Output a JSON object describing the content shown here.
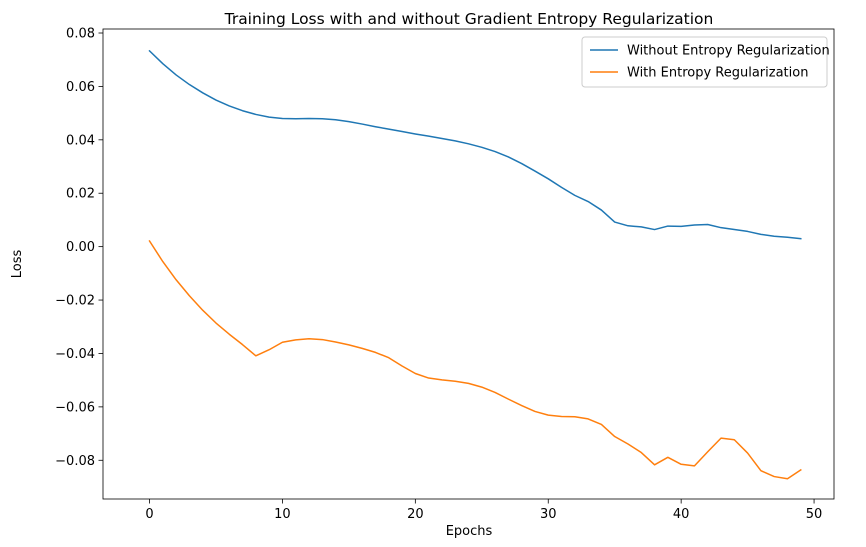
{
  "chart_data": {
    "type": "line",
    "title": "Training Loss with and without Gradient Entropy Regularization",
    "xlabel": "Epochs",
    "ylabel": "Loss",
    "xlim": [
      -3.5,
      51.5
    ],
    "ylim": [
      -0.0945,
      0.0815
    ],
    "xticks": [
      0,
      10,
      20,
      30,
      40,
      50
    ],
    "xtick_labels": [
      "0",
      "10",
      "20",
      "30",
      "40",
      "50"
    ],
    "yticks": [
      -0.08,
      -0.06,
      -0.04,
      -0.02,
      0.0,
      0.02,
      0.04,
      0.06,
      0.08
    ],
    "ytick_labels": [
      "−0.08",
      "−0.06",
      "−0.04",
      "−0.02",
      "0.00",
      "0.02",
      "0.04",
      "0.06",
      "0.08"
    ],
    "grid": false,
    "legend_position": "top-right",
    "x": [
      0,
      1,
      2,
      3,
      4,
      5,
      6,
      7,
      8,
      9,
      10,
      11,
      12,
      13,
      14,
      15,
      16,
      17,
      18,
      19,
      20,
      21,
      22,
      23,
      24,
      25,
      26,
      27,
      28,
      29,
      30,
      31,
      32,
      33,
      34,
      35,
      36,
      37,
      38,
      39,
      40,
      41,
      42,
      43,
      44,
      45,
      46,
      47,
      48,
      49
    ],
    "series": [
      {
        "name": "Without Entropy Regularization",
        "color": "#1f77b4",
        "values": [
          0.0733,
          0.0685,
          0.0643,
          0.0607,
          0.0576,
          0.0549,
          0.0527,
          0.0509,
          0.0495,
          0.0485,
          0.048,
          0.0479,
          0.048,
          0.0479,
          0.0475,
          0.0468,
          0.0459,
          0.0449,
          0.044,
          0.0431,
          0.0422,
          0.0414,
          0.0405,
          0.0396,
          0.0385,
          0.0372,
          0.0356,
          0.0336,
          0.0311,
          0.0283,
          0.0254,
          0.0222,
          0.0192,
          0.0169,
          0.0137,
          0.0092,
          0.0078,
          0.0074,
          0.0064,
          0.0077,
          0.0076,
          0.0081,
          0.0083,
          0.0071,
          0.0064,
          0.0057,
          0.0046,
          0.0039,
          0.0035,
          0.003
        ]
      },
      {
        "name": "With Entropy Regularization",
        "color": "#ff7f0e",
        "values": [
          0.0021,
          -0.0056,
          -0.0124,
          -0.0184,
          -0.0238,
          -0.0286,
          -0.0328,
          -0.0367,
          -0.0409,
          -0.0386,
          -0.0358,
          -0.0349,
          -0.0345,
          -0.0348,
          -0.0357,
          -0.0368,
          -0.0381,
          -0.0396,
          -0.0416,
          -0.0447,
          -0.0475,
          -0.0492,
          -0.0499,
          -0.0504,
          -0.0512,
          -0.0526,
          -0.0546,
          -0.0571,
          -0.0595,
          -0.0617,
          -0.0631,
          -0.0636,
          -0.0637,
          -0.0645,
          -0.0666,
          -0.0711,
          -0.0739,
          -0.0771,
          -0.0817,
          -0.0789,
          -0.0815,
          -0.0821,
          -0.0768,
          -0.0717,
          -0.0723,
          -0.0773,
          -0.0839,
          -0.0861,
          -0.0869,
          -0.0836
        ]
      }
    ]
  }
}
